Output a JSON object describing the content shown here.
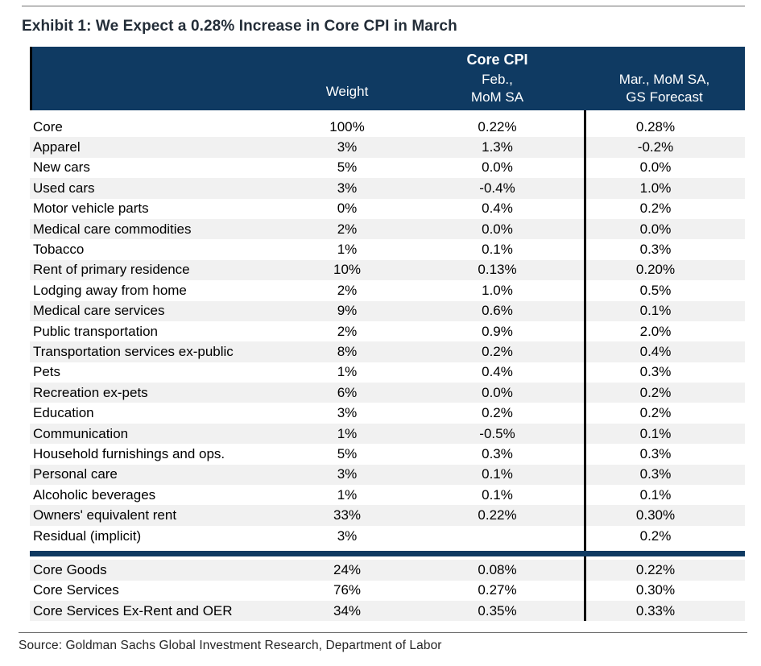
{
  "page": {
    "title": "Exhibit 1: We Expect a 0.28% Increase in Core CPI in March",
    "source": "Source: Goldman Sachs Global Investment Research, Department of Labor"
  },
  "colors": {
    "header_navy": "#0f3a62",
    "stripe_gray": "#f1f1f1",
    "divider_black": "#000000",
    "title_text": "#232d38"
  },
  "chart_data": {
    "type": "table",
    "title": "Exhibit 1: We Expect a 0.28% Increase in Core CPI in March",
    "group_header": "Core CPI",
    "column_headers": {
      "category": "",
      "weight": "Weight",
      "feb": [
        "Feb.,",
        "MoM SA"
      ],
      "mar": [
        "Mar., MoM SA,",
        "GS Forecast"
      ]
    },
    "rows": [
      {
        "category": "Core",
        "weight": "100%",
        "feb": "0.22%",
        "mar": "0.28%"
      },
      {
        "category": "Apparel",
        "weight": "3%",
        "feb": "1.3%",
        "mar": "-0.2%"
      },
      {
        "category": "New cars",
        "weight": "5%",
        "feb": "0.0%",
        "mar": "0.0%"
      },
      {
        "category": "Used cars",
        "weight": "3%",
        "feb": "-0.4%",
        "mar": "1.0%"
      },
      {
        "category": "Motor vehicle parts",
        "weight": "0%",
        "feb": "0.4%",
        "mar": "0.2%"
      },
      {
        "category": "Medical care commodities",
        "weight": "2%",
        "feb": "0.0%",
        "mar": "0.0%"
      },
      {
        "category": "Tobacco",
        "weight": "1%",
        "feb": "0.1%",
        "mar": "0.3%"
      },
      {
        "category": "Rent of primary residence",
        "weight": "10%",
        "feb": "0.13%",
        "mar": "0.20%"
      },
      {
        "category": "Lodging away from home",
        "weight": "2%",
        "feb": "1.0%",
        "mar": "0.5%"
      },
      {
        "category": "Medical care services",
        "weight": "9%",
        "feb": "0.6%",
        "mar": "0.1%"
      },
      {
        "category": "Public transportation",
        "weight": "2%",
        "feb": "0.9%",
        "mar": "2.0%"
      },
      {
        "category": "Transportation services ex-public",
        "weight": "8%",
        "feb": "0.2%",
        "mar": "0.4%"
      },
      {
        "category": "Pets",
        "weight": "1%",
        "feb": "0.4%",
        "mar": "0.3%"
      },
      {
        "category": "Recreation ex-pets",
        "weight": "6%",
        "feb": "0.0%",
        "mar": "0.2%"
      },
      {
        "category": "Education",
        "weight": "3%",
        "feb": "0.2%",
        "mar": "0.2%"
      },
      {
        "category": "Communication",
        "weight": "1%",
        "feb": "-0.5%",
        "mar": "0.1%"
      },
      {
        "category": "Household furnishings and ops.",
        "weight": "5%",
        "feb": "0.3%",
        "mar": "0.3%"
      },
      {
        "category": "Personal care",
        "weight": "3%",
        "feb": "0.1%",
        "mar": "0.3%"
      },
      {
        "category": "Alcoholic beverages",
        "weight": "1%",
        "feb": "0.1%",
        "mar": "0.1%"
      },
      {
        "category": "Owners' equivalent rent",
        "weight": "33%",
        "feb": "0.22%",
        "mar": "0.30%"
      },
      {
        "category": "Residual (implicit)",
        "weight": "3%",
        "feb": "",
        "mar": "0.2%"
      }
    ],
    "summary_rows": [
      {
        "category": "Core Goods",
        "weight": "24%",
        "feb": "0.08%",
        "mar": "0.22%"
      },
      {
        "category": "Core Services",
        "weight": "76%",
        "feb": "0.27%",
        "mar": "0.30%"
      },
      {
        "category": "Core Services Ex-Rent and OER",
        "weight": "34%",
        "feb": "0.35%",
        "mar": "0.33%"
      }
    ],
    "source": "Source: Goldman Sachs Global Investment Research, Department of Labor",
    "layout": {
      "stripes": true,
      "vertical_divider_before_column": "mar",
      "section_divider_after_row": "Residual (implicit)"
    }
  }
}
